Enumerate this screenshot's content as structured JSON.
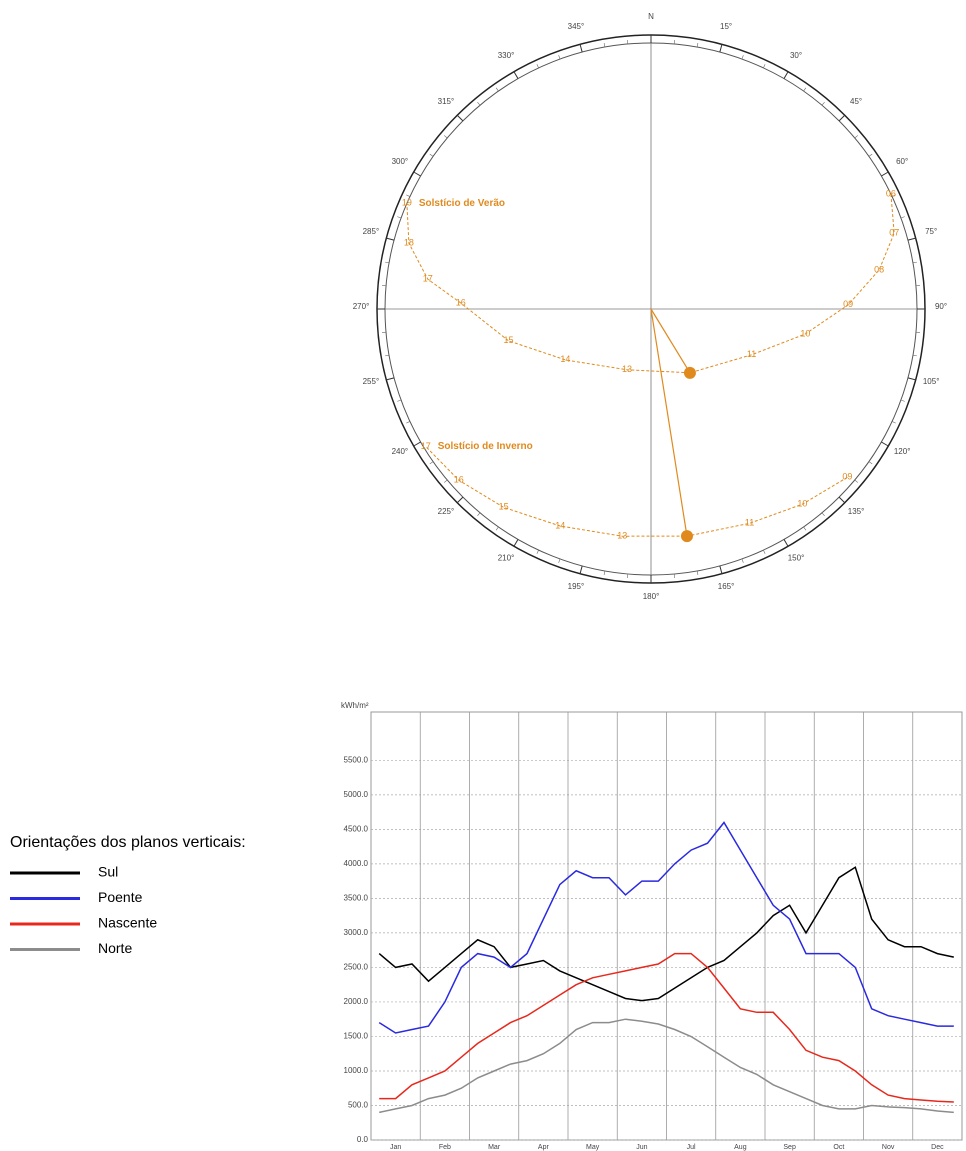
{
  "chart_data": [
    {
      "type": "sunpath",
      "angle_ticks": [
        {
          "value": 0,
          "label": "N"
        },
        {
          "value": 15,
          "label": "15°"
        },
        {
          "value": 30,
          "label": "30°"
        },
        {
          "value": 45,
          "label": "45°"
        },
        {
          "value": 60,
          "label": "60°"
        },
        {
          "value": 75,
          "label": "75°"
        },
        {
          "value": 90,
          "label": "90°"
        },
        {
          "value": 105,
          "label": "105°"
        },
        {
          "value": 120,
          "label": "120°"
        },
        {
          "value": 135,
          "label": "135°"
        },
        {
          "value": 150,
          "label": "150°"
        },
        {
          "value": 165,
          "label": "165°"
        },
        {
          "value": 180,
          "label": "180°"
        },
        {
          "value": 195,
          "label": "195°"
        },
        {
          "value": 210,
          "label": "210°"
        },
        {
          "value": 225,
          "label": "225°"
        },
        {
          "value": 240,
          "label": "240°"
        },
        {
          "value": 255,
          "label": "255°"
        },
        {
          "value": 270,
          "label": "270°"
        },
        {
          "value": 285,
          "label": "285°"
        },
        {
          "value": 300,
          "label": "300°"
        },
        {
          "value": 315,
          "label": "315°"
        },
        {
          "value": 330,
          "label": "330°"
        },
        {
          "value": 345,
          "label": "345°"
        }
      ],
      "altitude_range": [
        0,
        90
      ],
      "series": [
        {
          "name": "Solstício de Verão",
          "color": "#e08a1e",
          "highlight": 6,
          "hours": [
            "06",
            "07",
            "08",
            "09",
            "10",
            "11",
            "12",
            "13",
            "14",
            "15",
            "16",
            "17",
            "18",
            "19"
          ],
          "azimuth": [
            64.4,
            72.7,
            80.3,
            88.8,
            99.2,
            114.5,
            148.6,
            201.5,
            239.3,
            257.4,
            271.8,
            277.6,
            285.2,
            293.4
          ],
          "altitude": [
            0,
            3.8,
            11.7,
            23.3,
            37.1,
            52.6,
            64.7,
            67.9,
            56.3,
            40.6,
            25.6,
            13.8,
            5.1,
            0
          ]
        },
        {
          "name": "Solstício de Inverno",
          "color": "#e08a1e",
          "highlight": 3,
          "hours": [
            "09",
            "10",
            "11",
            "12",
            "13",
            "14",
            "15",
            "16",
            "17"
          ],
          "azimuth": [
            130.6,
            142.2,
            155.3,
            171.0,
            187.2,
            202.7,
            216.6,
            228.3,
            238.6
          ],
          "altitude": [
            2.5,
            6.4,
            10.2,
            12.2,
            12.5,
            10.4,
            6.4,
            2.9,
            0.7
          ]
        }
      ]
    },
    {
      "type": "line",
      "y_label": "kWh/m²",
      "legend_title": "Orientações dos planos verticais:",
      "legend": "left",
      "grid": true,
      "ylim": [
        0,
        6200
      ],
      "yticks": [
        {
          "value": 0,
          "label": "0.0"
        },
        {
          "value": 500,
          "label": "500.0"
        },
        {
          "value": 1000,
          "label": "1000.0"
        },
        {
          "value": 1500,
          "label": "1500.0"
        },
        {
          "value": 2000,
          "label": "2000.0"
        },
        {
          "value": 2500,
          "label": "2500.0"
        },
        {
          "value": 3000,
          "label": "3000.0"
        },
        {
          "value": 3500,
          "label": "3500.0"
        },
        {
          "value": 4000,
          "label": "4000.0"
        },
        {
          "value": 4500,
          "label": "4500.0"
        },
        {
          "value": 5000,
          "label": "5000.0"
        },
        {
          "value": 5500,
          "label": "5500.0"
        }
      ],
      "categories": [
        null,
        "Jan",
        null,
        null,
        "Feb",
        null,
        null,
        "Mar",
        null,
        null,
        "Apr",
        null,
        null,
        "May",
        null,
        null,
        "Jun",
        null,
        null,
        "Jul",
        null,
        null,
        "Aug",
        null,
        null,
        "Sep",
        null,
        null,
        "Oct",
        null,
        null,
        "Nov",
        null,
        null,
        "Dec",
        null
      ],
      "series": [
        {
          "name": "Sul",
          "color": "#000000",
          "values": [
            2700,
            2500,
            2550,
            2300,
            2500,
            2700,
            2900,
            2800,
            2500,
            2550,
            2600,
            2450,
            2350,
            2250,
            2150,
            2050,
            2020,
            2050,
            2200,
            2350,
            2500,
            2600,
            2800,
            3000,
            3250,
            3400,
            3000,
            3400,
            3800,
            3950,
            3200,
            2900,
            2800,
            2800,
            2700,
            2650
          ]
        },
        {
          "name": "Poente",
          "color": "#2a2ae0",
          "values": [
            1700,
            1550,
            1600,
            1650,
            2000,
            2500,
            2700,
            2650,
            2500,
            2700,
            3200,
            3700,
            3900,
            3800,
            3800,
            3550,
            3750,
            3750,
            4000,
            4200,
            4300,
            4600,
            4200,
            3800,
            3400,
            3200,
            2700,
            2700,
            2700,
            2500,
            1900,
            1800,
            1750,
            1700,
            1650,
            1650
          ]
        },
        {
          "name": "Nascente",
          "color": "#e8281c",
          "values": [
            600,
            600,
            800,
            900,
            1000,
            1200,
            1400,
            1550,
            1700,
            1800,
            1950,
            2100,
            2250,
            2350,
            2400,
            2450,
            2500,
            2550,
            2700,
            2700,
            2500,
            2200,
            1900,
            1850,
            1850,
            1600,
            1300,
            1200,
            1150,
            1000,
            800,
            650,
            600,
            580,
            560,
            550
          ]
        },
        {
          "name": "Norte",
          "color": "#8c8c8c",
          "values": [
            400,
            450,
            500,
            600,
            650,
            750,
            900,
            1000,
            1100,
            1150,
            1250,
            1400,
            1600,
            1700,
            1700,
            1750,
            1720,
            1680,
            1600,
            1500,
            1350,
            1200,
            1050,
            950,
            800,
            700,
            600,
            500,
            450,
            450,
            500,
            480,
            470,
            450,
            420,
            400
          ]
        }
      ]
    }
  ]
}
